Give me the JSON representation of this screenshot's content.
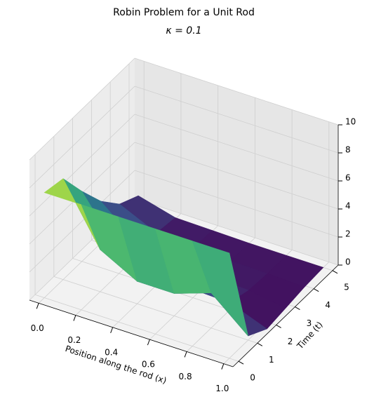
{
  "chart_data": {
    "type": "surface",
    "title": "Robin Problem for a Unit Rod",
    "subtitle": "κ = 0.1",
    "xlabel": "Position along the rod (x)",
    "ylabel": "Time (t)",
    "colormap": "viridis",
    "x": [
      0,
      0.2,
      0.4,
      0.6,
      0.8,
      1.0
    ],
    "t": [
      0,
      1,
      2,
      3,
      4,
      5
    ],
    "z": [
      [
        7.5,
        7.5,
        7.5,
        7.5,
        7.5,
        7.5
      ],
      [
        7.2,
        3.0,
        1.6,
        1.6,
        2.5,
        0.3
      ],
      [
        5.0,
        1.5,
        0.8,
        0.6,
        0.5,
        -0.5
      ],
      [
        3.0,
        0.8,
        0.3,
        0.2,
        0.1,
        -0.3
      ],
      [
        1.5,
        0.3,
        0.1,
        0.05,
        0,
        -0.1
      ],
      [
        0.8,
        0.1,
        0.05,
        0,
        0,
        0
      ]
    ],
    "xlim": [
      -0.05,
      1.05
    ],
    "ylim": [
      -0.3,
      5.3
    ],
    "zlim": [
      0,
      10
    ],
    "xticks": [
      {
        "value": 0,
        "label": "0.0"
      },
      0.2,
      0.4,
      0.6,
      0.8,
      {
        "value": 1,
        "label": "1.0"
      }
    ],
    "yticks": [
      0,
      1,
      2,
      3,
      4,
      5
    ],
    "zticks": [
      0,
      2,
      4,
      6,
      8,
      10
    ],
    "grid": true
  }
}
